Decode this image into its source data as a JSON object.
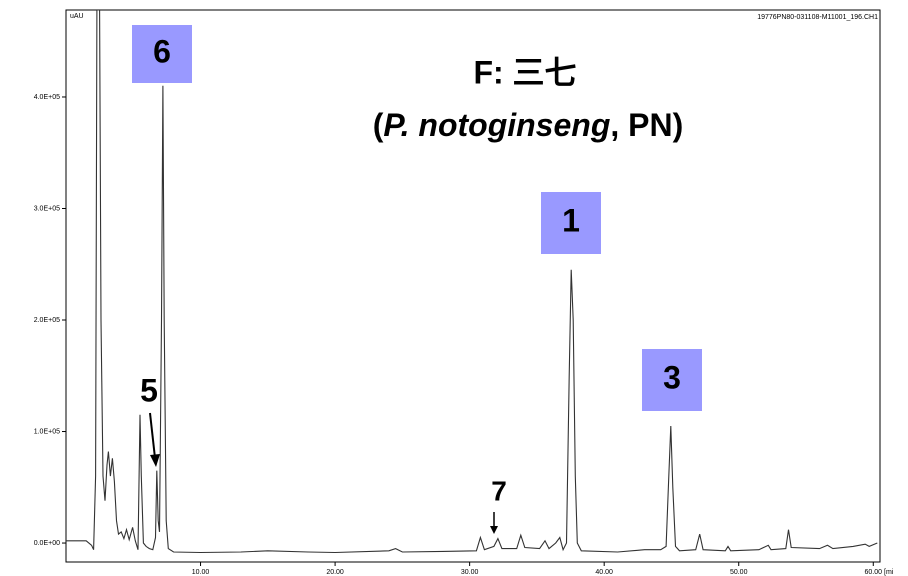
{
  "chart_data": {
    "type": "line",
    "title": "F: 三七",
    "subtitle_parts": [
      "(",
      "P. notoginseng",
      ", PN)"
    ],
    "y_label": "uAU",
    "x_label": "[mi",
    "file_label": "19776PN80-031108-M11001_196.CH1",
    "color": "#333333",
    "xlim": [
      0,
      60.5
    ],
    "ylim": [
      -17000,
      478000
    ],
    "xticks": [
      {
        "value": 10,
        "label": "10.00"
      },
      {
        "value": 20,
        "label": "20.00"
      },
      {
        "value": 30,
        "label": "30.00"
      },
      {
        "value": 40,
        "label": "40.00"
      },
      {
        "value": 50,
        "label": "50.00"
      },
      {
        "value": 60,
        "label": "60.00"
      }
    ],
    "yticks": [
      {
        "value": 0,
        "label": "0.0E+00"
      },
      {
        "value": 100000,
        "label": "1.0E+05"
      },
      {
        "value": 200000,
        "label": "2.0E+05"
      },
      {
        "value": 300000,
        "label": "3.0E+05"
      },
      {
        "value": 400000,
        "label": "4.0E+05"
      }
    ],
    "annotations": [
      "6",
      "5",
      "1",
      "3",
      "7"
    ],
    "x": [
      0,
      1.5,
      1.9,
      2.05,
      2.2,
      2.3,
      2.5,
      2.6,
      2.75,
      2.9,
      3.05,
      3.15,
      3.3,
      3.45,
      3.6,
      3.75,
      3.9,
      4.1,
      4.3,
      4.5,
      4.7,
      4.95,
      5.15,
      5.35,
      5.5,
      5.6,
      5.75,
      5.95,
      6.2,
      6.45,
      6.65,
      6.75,
      6.85,
      6.95,
      7.1,
      7.2,
      7.3,
      7.45,
      7.6,
      8,
      10,
      13,
      15,
      18,
      20,
      24,
      24.5,
      25,
      28,
      30.5,
      30.8,
      31.1,
      31.8,
      32.1,
      32.4,
      33.5,
      33.8,
      34.1,
      35.2,
      35.6,
      35.9,
      36.4,
      36.7,
      36.95,
      37.2,
      37.4,
      37.55,
      37.7,
      37.85,
      38.0,
      38.3,
      41,
      43,
      44.2,
      44.6,
      44.8,
      44.95,
      45.1,
      45.3,
      45.6,
      46.8,
      47.1,
      47.35,
      49,
      49.2,
      49.4,
      51.5,
      52.2,
      52.4,
      53.5,
      53.7,
      53.9,
      56,
      56.6,
      57,
      58.5,
      59.4,
      59.7,
      60.3
    ],
    "values": [
      2000,
      2000,
      -2000,
      -6000,
      60000,
      478000,
      478000,
      200000,
      60000,
      38000,
      70000,
      82000,
      60000,
      76000,
      55000,
      20000,
      8000,
      10000,
      4000,
      12000,
      3000,
      14000,
      2000,
      -6000,
      115000,
      60000,
      0,
      -3000,
      -5000,
      -6000,
      5000,
      65000,
      20000,
      10000,
      200000,
      410000,
      200000,
      20000,
      -5000,
      -8000,
      -8500,
      -8000,
      -7000,
      -8000,
      -8500,
      -7000,
      -5000,
      -8000,
      -7500,
      -7000,
      5000,
      -6000,
      -3000,
      4000,
      -5000,
      -5000,
      7000,
      -4000,
      -5000,
      2000,
      -5000,
      0,
      5000,
      -6000,
      0,
      150000,
      245000,
      200000,
      60000,
      0,
      -7000,
      -8000,
      -6000,
      -6000,
      -3000,
      60000,
      105000,
      50000,
      -3000,
      -7000,
      -6000,
      8000,
      -6000,
      -7000,
      -3000,
      -7000,
      -6000,
      -2000,
      -6000,
      -5000,
      12000,
      -4000,
      -5000,
      -2000,
      -5000,
      -3000,
      -1000,
      -3000,
      0
    ]
  }
}
